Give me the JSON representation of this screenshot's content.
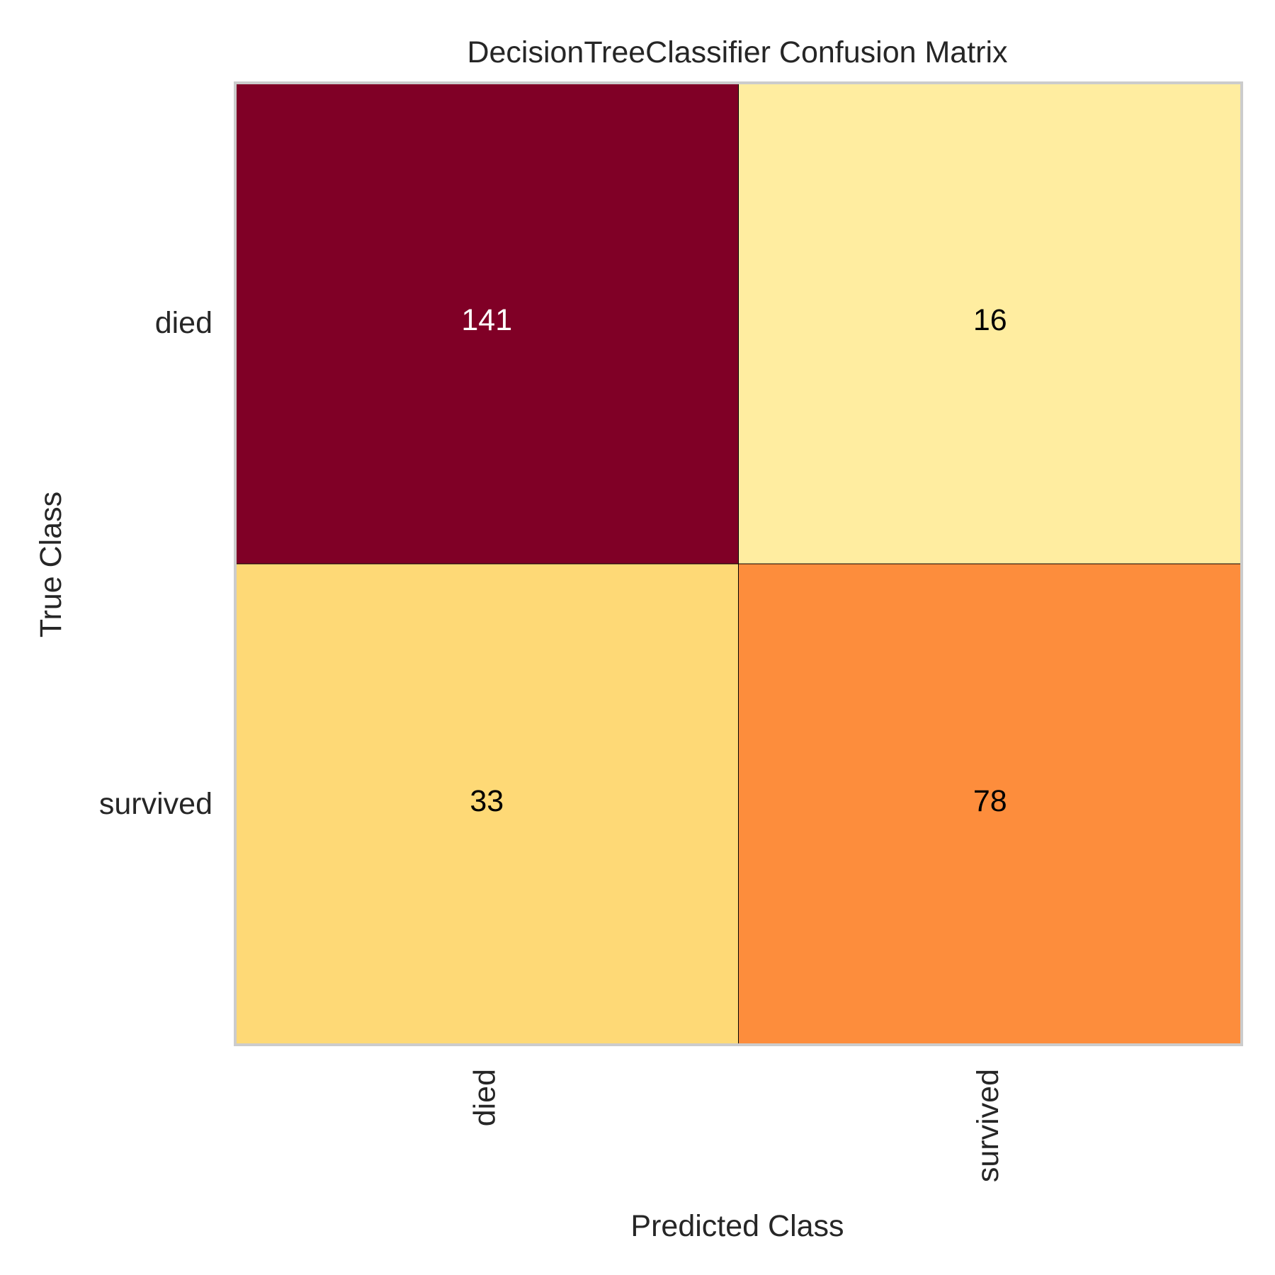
{
  "chart_data": {
    "type": "heatmap",
    "title": "DecisionTreeClassifier Confusion Matrix",
    "xlabel": "Predicted Class",
    "ylabel": "True Class",
    "x_categories": [
      "died",
      "survived"
    ],
    "y_categories": [
      "died",
      "survived"
    ],
    "values": [
      [
        141,
        16
      ],
      [
        33,
        78
      ]
    ],
    "cell_colors": [
      [
        "#800026",
        "#ffeda0"
      ],
      [
        "#fed976",
        "#fd8d3c"
      ]
    ],
    "text_colors": [
      [
        "#ffffff",
        "#000000"
      ],
      [
        "#000000",
        "#000000"
      ]
    ],
    "colormap": "YlOrRd",
    "grid": false,
    "legend": "none"
  }
}
